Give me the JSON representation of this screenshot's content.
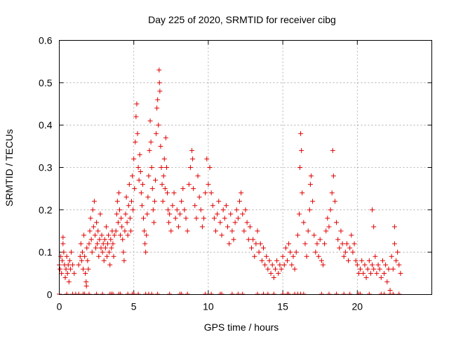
{
  "chart_data": {
    "type": "scatter",
    "title": "Day 225 of 2020, SRMTID for receiver cibg",
    "xlabel": "GPS time / hours",
    "ylabel": "SRMTID / TECUs",
    "xlim": [
      0,
      25
    ],
    "ylim": [
      0,
      0.6
    ],
    "xticks": [
      0,
      5,
      10,
      15,
      20
    ],
    "yticks": [
      0,
      0.1,
      0.2,
      0.3,
      0.4,
      0.5,
      0.6
    ],
    "xtick_labels": [
      "0",
      "5",
      "10",
      "15",
      "20"
    ],
    "ytick_labels": [
      "0",
      "0.1",
      "0.2",
      "0.3",
      "0.4",
      "0.5",
      "0.6"
    ],
    "grid": true,
    "marker": "+",
    "marker_color": "#e00000",
    "series": [
      {
        "name": "SRMTID",
        "points": [
          [
            0.0,
            0.07
          ],
          [
            0.05,
            0.06
          ],
          [
            0.1,
            0.09
          ],
          [
            0.15,
            0.05
          ],
          [
            0.2,
            0.08
          ],
          [
            0.25,
            0.12
          ],
          [
            0.3,
            0.1
          ],
          [
            0.35,
            0.07
          ],
          [
            0.4,
            0.04
          ],
          [
            0.45,
            0.06
          ],
          [
            0.5,
            0.09
          ],
          [
            0.55,
            0.05
          ],
          [
            0.6,
            0.07
          ],
          [
            0.65,
            0.03
          ],
          [
            0.7,
            0.08
          ],
          [
            0.75,
            0.06
          ],
          [
            0.8,
            0.1
          ],
          [
            0.25,
            0.135
          ],
          [
            0.9,
            0.07
          ],
          [
            1.0,
            0.05
          ],
          [
            1.3,
            0.07
          ],
          [
            1.4,
            0.09
          ],
          [
            1.45,
            0.12
          ],
          [
            1.5,
            0.08
          ],
          [
            1.55,
            0.1
          ],
          [
            1.6,
            0.06
          ],
          [
            1.65,
            0.14
          ],
          [
            1.7,
            0.09
          ],
          [
            1.75,
            0.05
          ],
          [
            1.8,
            0.03
          ],
          [
            1.82,
            0.02
          ],
          [
            1.85,
            0.11
          ],
          [
            1.9,
            0.08
          ],
          [
            1.95,
            0.06
          ],
          [
            2.0,
            0.12
          ],
          [
            2.05,
            0.15
          ],
          [
            2.1,
            0.18
          ],
          [
            2.15,
            0.13
          ],
          [
            2.2,
            0.1
          ],
          [
            2.25,
            0.2
          ],
          [
            2.3,
            0.16
          ],
          [
            2.35,
            0.22
          ],
          [
            2.4,
            0.14
          ],
          [
            2.45,
            0.11
          ],
          [
            2.5,
            0.17
          ],
          [
            2.55,
            0.12
          ],
          [
            2.6,
            0.15
          ],
          [
            2.65,
            0.09
          ],
          [
            2.7,
            0.13
          ],
          [
            2.75,
            0.19
          ],
          [
            2.8,
            0.11
          ],
          [
            2.85,
            0.14
          ],
          [
            2.9,
            0.1
          ],
          [
            2.95,
            0.12
          ],
          [
            3.0,
            0.08
          ],
          [
            3.05,
            0.13
          ],
          [
            3.1,
            0.11
          ],
          [
            3.15,
            0.16
          ],
          [
            3.2,
            0.09
          ],
          [
            3.25,
            0.12
          ],
          [
            3.3,
            0.14
          ],
          [
            3.35,
            0.1
          ],
          [
            3.4,
            0.07
          ],
          [
            3.45,
            0.13
          ],
          [
            3.5,
            0.11
          ],
          [
            3.55,
            0.15
          ],
          [
            3.6,
            0.12
          ],
          [
            3.65,
            0.09
          ],
          [
            3.7,
            0.14
          ],
          [
            3.8,
            0.15
          ],
          [
            3.85,
            0.19
          ],
          [
            3.9,
            0.22
          ],
          [
            3.95,
            0.17
          ],
          [
            4.0,
            0.24
          ],
          [
            4.05,
            0.2
          ],
          [
            4.1,
            0.14
          ],
          [
            4.15,
            0.18
          ],
          [
            4.2,
            0.16
          ],
          [
            4.25,
            0.13
          ],
          [
            4.3,
            0.1
          ],
          [
            4.35,
            0.08
          ],
          [
            4.4,
            0.15
          ],
          [
            4.45,
            0.19
          ],
          [
            4.5,
            0.23
          ],
          [
            4.55,
            0.17
          ],
          [
            4.6,
            0.14
          ],
          [
            4.65,
            0.21
          ],
          [
            4.7,
            0.26
          ],
          [
            4.75,
            0.18
          ],
          [
            4.8,
            0.15
          ],
          [
            4.85,
            0.22
          ],
          [
            4.9,
            0.28
          ],
          [
            4.95,
            0.2
          ],
          [
            5.0,
            0.32
          ],
          [
            5.05,
            0.25
          ],
          [
            5.1,
            0.36
          ],
          [
            5.15,
            0.42
          ],
          [
            5.2,
            0.45
          ],
          [
            5.25,
            0.38
          ],
          [
            5.3,
            0.3
          ],
          [
            5.35,
            0.27
          ],
          [
            5.4,
            0.33
          ],
          [
            5.45,
            0.29
          ],
          [
            5.5,
            0.24
          ],
          [
            5.55,
            0.21
          ],
          [
            5.6,
            0.26
          ],
          [
            5.65,
            0.18
          ],
          [
            5.7,
            0.15
          ],
          [
            5.75,
            0.12
          ],
          [
            5.8,
            0.1
          ],
          [
            5.85,
            0.14
          ],
          [
            5.9,
            0.19
          ],
          [
            5.95,
            0.23
          ],
          [
            6.0,
            0.28
          ],
          [
            6.05,
            0.34
          ],
          [
            6.1,
            0.41
          ],
          [
            6.15,
            0.36
          ],
          [
            6.2,
            0.3
          ],
          [
            6.25,
            0.25
          ],
          [
            6.3,
            0.2
          ],
          [
            6.35,
            0.17
          ],
          [
            6.4,
            0.22
          ],
          [
            6.45,
            0.27
          ],
          [
            6.5,
            0.38
          ],
          [
            6.55,
            0.44
          ],
          [
            6.6,
            0.46
          ],
          [
            6.65,
            0.4
          ],
          [
            6.7,
            0.53
          ],
          [
            6.72,
            0.5
          ],
          [
            6.75,
            0.48
          ],
          [
            6.8,
            0.35
          ],
          [
            6.85,
            0.3
          ],
          [
            6.9,
            0.26
          ],
          [
            6.95,
            0.22
          ],
          [
            7.0,
            0.28
          ],
          [
            7.05,
            0.32
          ],
          [
            7.1,
            0.25
          ],
          [
            7.15,
            0.37
          ],
          [
            7.2,
            0.3
          ],
          [
            7.25,
            0.24
          ],
          [
            7.3,
            0.2
          ],
          [
            7.35,
            0.17
          ],
          [
            7.4,
            0.19
          ],
          [
            7.5,
            0.15
          ],
          [
            7.6,
            0.21
          ],
          [
            7.7,
            0.24
          ],
          [
            7.8,
            0.18
          ],
          [
            7.9,
            0.2
          ],
          [
            8.0,
            0.16
          ],
          [
            8.1,
            0.19
          ],
          [
            8.2,
            0.22
          ],
          [
            8.3,
            0.25
          ],
          [
            8.4,
            0.2
          ],
          [
            8.5,
            0.18
          ],
          [
            8.6,
            0.15
          ],
          [
            8.7,
            0.26
          ],
          [
            8.8,
            0.3
          ],
          [
            8.9,
            0.34
          ],
          [
            8.95,
            0.32
          ],
          [
            9.0,
            0.25
          ],
          [
            9.1,
            0.21
          ],
          [
            9.2,
            0.18
          ],
          [
            9.3,
            0.28
          ],
          [
            9.4,
            0.23
          ],
          [
            9.5,
            0.2
          ],
          [
            9.6,
            0.16
          ],
          [
            9.7,
            0.18
          ],
          [
            9.8,
            0.24
          ],
          [
            9.9,
            0.32
          ],
          [
            10.0,
            0.26
          ],
          [
            10.1,
            0.3
          ],
          [
            10.2,
            0.24
          ],
          [
            10.3,
            0.21
          ],
          [
            10.4,
            0.18
          ],
          [
            10.5,
            0.15
          ],
          [
            10.6,
            0.19
          ],
          [
            10.7,
            0.22
          ],
          [
            10.8,
            0.17
          ],
          [
            10.9,
            0.14
          ],
          [
            11.0,
            0.2
          ],
          [
            11.1,
            0.18
          ],
          [
            11.2,
            0.21
          ],
          [
            11.3,
            0.16
          ],
          [
            11.4,
            0.12
          ],
          [
            11.5,
            0.19
          ],
          [
            11.6,
            0.15
          ],
          [
            11.7,
            0.13
          ],
          [
            11.8,
            0.17
          ],
          [
            11.9,
            0.2
          ],
          [
            12.0,
            0.18
          ],
          [
            12.1,
            0.22
          ],
          [
            12.2,
            0.24
          ],
          [
            12.3,
            0.19
          ],
          [
            12.4,
            0.15
          ],
          [
            12.5,
            0.2
          ],
          [
            12.6,
            0.17
          ],
          [
            12.7,
            0.13
          ],
          [
            12.8,
            0.16
          ],
          [
            12.9,
            0.11
          ],
          [
            13.0,
            0.13
          ],
          [
            13.1,
            0.09
          ],
          [
            13.2,
            0.12
          ],
          [
            13.3,
            0.15
          ],
          [
            13.4,
            0.1
          ],
          [
            13.5,
            0.12
          ],
          [
            13.6,
            0.08
          ],
          [
            13.7,
            0.11
          ],
          [
            13.8,
            0.07
          ],
          [
            13.9,
            0.09
          ],
          [
            14.0,
            0.06
          ],
          [
            14.1,
            0.08
          ],
          [
            14.2,
            0.05
          ],
          [
            14.3,
            0.07
          ],
          [
            14.4,
            0.04
          ],
          [
            14.5,
            0.06
          ],
          [
            14.6,
            0.08
          ],
          [
            14.7,
            0.05
          ],
          [
            14.8,
            0.07
          ],
          [
            14.9,
            0.06
          ],
          [
            15.0,
            0.09
          ],
          [
            15.1,
            0.07
          ],
          [
            15.2,
            0.11
          ],
          [
            15.3,
            0.08
          ],
          [
            15.4,
            0.12
          ],
          [
            15.5,
            0.1
          ],
          [
            15.6,
            0.07
          ],
          [
            15.7,
            0.09
          ],
          [
            15.8,
            0.06
          ],
          [
            15.9,
            0.1
          ],
          [
            16.0,
            0.14
          ],
          [
            16.1,
            0.19
          ],
          [
            16.15,
            0.3
          ],
          [
            16.2,
            0.38
          ],
          [
            16.25,
            0.34
          ],
          [
            16.3,
            0.24
          ],
          [
            16.4,
            0.17
          ],
          [
            16.5,
            0.12
          ],
          [
            16.6,
            0.09
          ],
          [
            16.7,
            0.15
          ],
          [
            16.8,
            0.2
          ],
          [
            16.85,
            0.26
          ],
          [
            16.9,
            0.28
          ],
          [
            17.0,
            0.22
          ],
          [
            17.1,
            0.14
          ],
          [
            17.2,
            0.1
          ],
          [
            17.3,
            0.12
          ],
          [
            17.4,
            0.09
          ],
          [
            17.5,
            0.13
          ],
          [
            17.6,
            0.08
          ],
          [
            17.7,
            0.07
          ],
          [
            17.8,
            0.12
          ],
          [
            17.9,
            0.15
          ],
          [
            18.0,
            0.18
          ],
          [
            18.1,
            0.16
          ],
          [
            18.2,
            0.2
          ],
          [
            18.3,
            0.24
          ],
          [
            18.35,
            0.34
          ],
          [
            18.4,
            0.28
          ],
          [
            18.5,
            0.22
          ],
          [
            18.6,
            0.17
          ],
          [
            18.7,
            0.13
          ],
          [
            18.8,
            0.11
          ],
          [
            18.9,
            0.15
          ],
          [
            19.0,
            0.12
          ],
          [
            19.1,
            0.09
          ],
          [
            19.2,
            0.1
          ],
          [
            19.3,
            0.12
          ],
          [
            19.4,
            0.08
          ],
          [
            19.5,
            0.11
          ],
          [
            19.6,
            0.14
          ],
          [
            19.7,
            0.1
          ],
          [
            19.8,
            0.12
          ],
          [
            19.9,
            0.08
          ],
          [
            20.0,
            0.07
          ],
          [
            20.1,
            0.05
          ],
          [
            20.2,
            0.06
          ],
          [
            20.3,
            0.08
          ],
          [
            20.4,
            0.05
          ],
          [
            20.5,
            0.07
          ],
          [
            20.6,
            0.04
          ],
          [
            20.7,
            0.06
          ],
          [
            20.8,
            0.08
          ],
          [
            20.9,
            0.05
          ],
          [
            21.0,
            0.07
          ],
          [
            21.1,
            0.06
          ],
          [
            21.2,
            0.09
          ],
          [
            21.3,
            0.05
          ],
          [
            21.4,
            0.07
          ],
          [
            21.0,
            0.2
          ],
          [
            21.1,
            0.16
          ],
          [
            21.5,
            0.06
          ],
          [
            21.6,
            0.04
          ],
          [
            21.7,
            0.08
          ],
          [
            21.8,
            0.05
          ],
          [
            21.9,
            0.07
          ],
          [
            22.0,
            0.03
          ],
          [
            22.1,
            0.06
          ],
          [
            22.2,
            0.01
          ],
          [
            22.3,
            0.09
          ],
          [
            22.4,
            0.06
          ],
          [
            22.5,
            0.12
          ],
          [
            22.6,
            0.08
          ],
          [
            22.7,
            0.1
          ],
          [
            22.8,
            0.07
          ],
          [
            22.5,
            0.16
          ],
          [
            22.9,
            0.05
          ]
        ]
      }
    ],
    "zero_marker_x": [
      0.0,
      0.5,
      0.9,
      1.1,
      1.3,
      1.6,
      1.7,
      2.0,
      2.5,
      2.9,
      3.4,
      3.5,
      3.6,
      4.0,
      4.1,
      4.6,
      4.9,
      5.0,
      5.3,
      5.8,
      6.0,
      6.2,
      6.6,
      7.4,
      8.1,
      8.2,
      8.6,
      9.8,
      10.2,
      10.8,
      10.9,
      11.6,
      12.0,
      12.3,
      13.3,
      13.7,
      14.0,
      14.4,
      15.0,
      15.3,
      15.4,
      15.8,
      16.0,
      16.2,
      16.4,
      17.6,
      18.1,
      18.6,
      19.1,
      19.5,
      20.1,
      20.2,
      20.8,
      21.6,
      21.8,
      22.2,
      22.4,
      22.8
    ]
  }
}
